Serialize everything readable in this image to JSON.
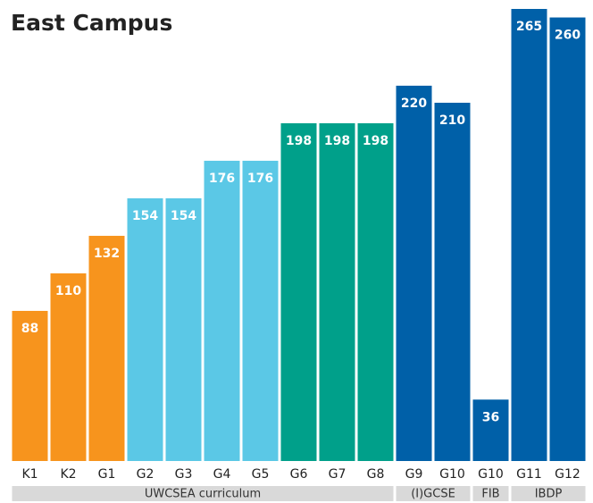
{
  "chart_data": {
    "type": "bar",
    "title": "East Campus",
    "categories": [
      "K1",
      "K2",
      "G1",
      "G2",
      "G3",
      "G4",
      "G5",
      "G6",
      "G7",
      "G8",
      "G9",
      "G10",
      "G10",
      "G11",
      "G12"
    ],
    "values": [
      88,
      110,
      132,
      154,
      154,
      176,
      176,
      198,
      198,
      198,
      220,
      210,
      36,
      265,
      260
    ],
    "colors": [
      "#f7941d",
      "#f7941d",
      "#f7941d",
      "#5bc8e6",
      "#5bc8e6",
      "#5bc8e6",
      "#5bc8e6",
      "#00a08a",
      "#00a08a",
      "#00a08a",
      "#0060a8",
      "#0060a8",
      "#0060a8",
      "#0060a8",
      "#0060a8"
    ],
    "groups": [
      {
        "name": "UWCSEA curriculum",
        "count": 10
      },
      {
        "name": "(I)GCSE",
        "count": 2
      },
      {
        "name": "FIB",
        "count": 1
      },
      {
        "name": "IBDP",
        "count": 2
      }
    ]
  }
}
